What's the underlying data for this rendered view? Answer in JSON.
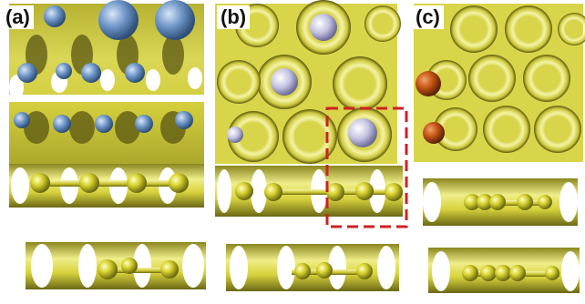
{
  "panels": {
    "a": {
      "label": "(a)"
    },
    "b": {
      "label": "(b)"
    },
    "c": {
      "label": "(c)"
    }
  },
  "colors": {
    "surface": "#e3e069",
    "surface_dark": "#6f6b1c",
    "atom_yellow": "#d6d12e",
    "atom_blue": "#6f97c8",
    "atom_lavender": "#c4c3e2",
    "atom_orange": "#c45414",
    "highlight_box": "#cc2222"
  }
}
